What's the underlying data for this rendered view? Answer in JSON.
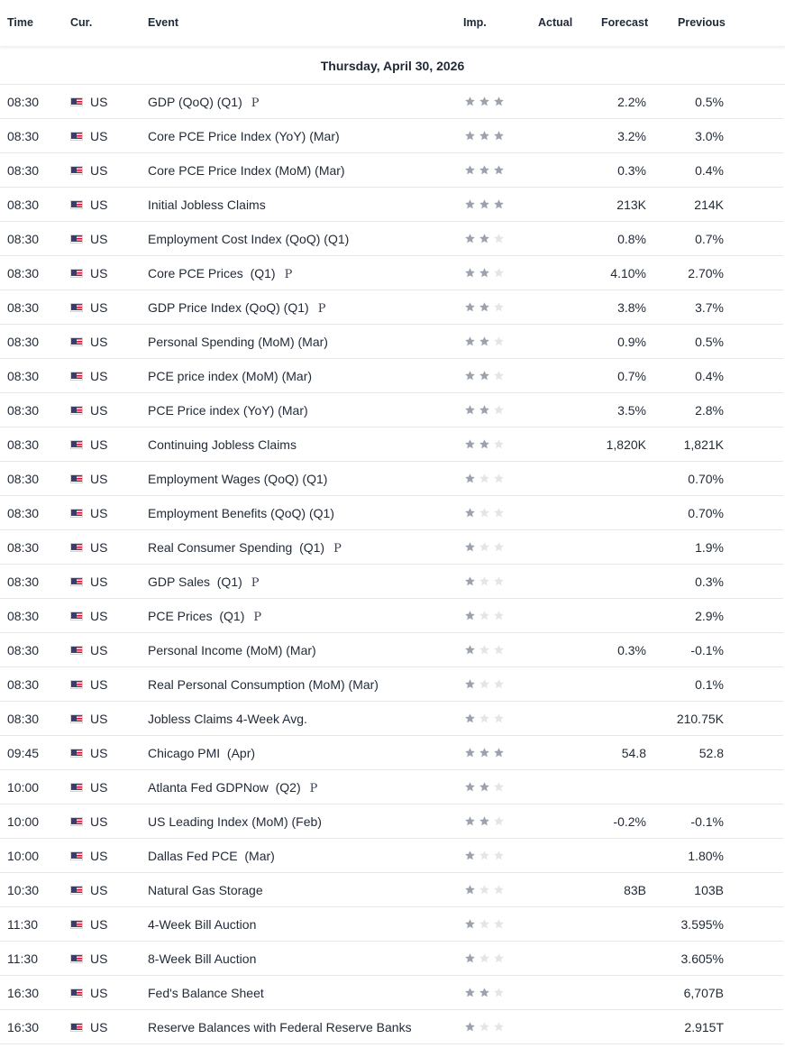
{
  "columns": {
    "time": "Time",
    "cur": "Cur.",
    "event": "Event",
    "imp": "Imp.",
    "actual": "Actual",
    "forecast": "Forecast",
    "previous": "Previous"
  },
  "date_label": "Thursday, April 30, 2026",
  "colors": {
    "star_on": "#9ca3af",
    "star_off": "#e2e5e9",
    "divider": "#e5e7eb"
  },
  "events": [
    {
      "time": "08:30",
      "cur": "US",
      "flag": "us-flag-icon",
      "event": "GDP (QoQ) (Q1)",
      "prelim": "P",
      "imp": 3,
      "actual": "",
      "forecast": "2.2%",
      "previous": "0.5%"
    },
    {
      "time": "08:30",
      "cur": "US",
      "flag": "us-flag-icon",
      "event": "Core PCE Price Index (YoY) (Mar)",
      "prelim": "",
      "imp": 3,
      "actual": "",
      "forecast": "3.2%",
      "previous": "3.0%"
    },
    {
      "time": "08:30",
      "cur": "US",
      "flag": "us-flag-icon",
      "event": "Core PCE Price Index (MoM) (Mar)",
      "prelim": "",
      "imp": 3,
      "actual": "",
      "forecast": "0.3%",
      "previous": "0.4%"
    },
    {
      "time": "08:30",
      "cur": "US",
      "flag": "us-flag-icon",
      "event": "Initial Jobless Claims",
      "prelim": "",
      "imp": 3,
      "actual": "",
      "forecast": "213K",
      "previous": "214K"
    },
    {
      "time": "08:30",
      "cur": "US",
      "flag": "us-flag-icon",
      "event": "Employment Cost Index (QoQ) (Q1)",
      "prelim": "",
      "imp": 2,
      "actual": "",
      "forecast": "0.8%",
      "previous": "0.7%"
    },
    {
      "time": "08:30",
      "cur": "US",
      "flag": "us-flag-icon",
      "event": "Core PCE Prices  (Q1)",
      "prelim": "P",
      "imp": 2,
      "actual": "",
      "forecast": "4.10%",
      "previous": "2.70%"
    },
    {
      "time": "08:30",
      "cur": "US",
      "flag": "us-flag-icon",
      "event": "GDP Price Index (QoQ) (Q1)",
      "prelim": "P",
      "imp": 2,
      "actual": "",
      "forecast": "3.8%",
      "previous": "3.7%"
    },
    {
      "time": "08:30",
      "cur": "US",
      "flag": "us-flag-icon",
      "event": "Personal Spending (MoM) (Mar)",
      "prelim": "",
      "imp": 2,
      "actual": "",
      "forecast": "0.9%",
      "previous": "0.5%"
    },
    {
      "time": "08:30",
      "cur": "US",
      "flag": "us-flag-icon",
      "event": "PCE price index (MoM) (Mar)",
      "prelim": "",
      "imp": 2,
      "actual": "",
      "forecast": "0.7%",
      "previous": "0.4%"
    },
    {
      "time": "08:30",
      "cur": "US",
      "flag": "us-flag-icon",
      "event": "PCE Price index (YoY) (Mar)",
      "prelim": "",
      "imp": 2,
      "actual": "",
      "forecast": "3.5%",
      "previous": "2.8%"
    },
    {
      "time": "08:30",
      "cur": "US",
      "flag": "us-flag-icon",
      "event": "Continuing Jobless Claims",
      "prelim": "",
      "imp": 2,
      "actual": "",
      "forecast": "1,820K",
      "previous": "1,821K"
    },
    {
      "time": "08:30",
      "cur": "US",
      "flag": "us-flag-icon",
      "event": "Employment Wages (QoQ) (Q1)",
      "prelim": "",
      "imp": 1,
      "actual": "",
      "forecast": "",
      "previous": "0.70%"
    },
    {
      "time": "08:30",
      "cur": "US",
      "flag": "us-flag-icon",
      "event": "Employment Benefits (QoQ) (Q1)",
      "prelim": "",
      "imp": 1,
      "actual": "",
      "forecast": "",
      "previous": "0.70%"
    },
    {
      "time": "08:30",
      "cur": "US",
      "flag": "us-flag-icon",
      "event": "Real Consumer Spending  (Q1)",
      "prelim": "P",
      "imp": 1,
      "actual": "",
      "forecast": "",
      "previous": "1.9%"
    },
    {
      "time": "08:30",
      "cur": "US",
      "flag": "us-flag-icon",
      "event": "GDP Sales  (Q1)",
      "prelim": "P",
      "imp": 1,
      "actual": "",
      "forecast": "",
      "previous": "0.3%"
    },
    {
      "time": "08:30",
      "cur": "US",
      "flag": "us-flag-icon",
      "event": "PCE Prices  (Q1)",
      "prelim": "P",
      "imp": 1,
      "actual": "",
      "forecast": "",
      "previous": "2.9%"
    },
    {
      "time": "08:30",
      "cur": "US",
      "flag": "us-flag-icon",
      "event": "Personal Income (MoM) (Mar)",
      "prelim": "",
      "imp": 1,
      "actual": "",
      "forecast": "0.3%",
      "previous": "-0.1%"
    },
    {
      "time": "08:30",
      "cur": "US",
      "flag": "us-flag-icon",
      "event": "Real Personal Consumption (MoM) (Mar)",
      "prelim": "",
      "imp": 1,
      "actual": "",
      "forecast": "",
      "previous": "0.1%"
    },
    {
      "time": "08:30",
      "cur": "US",
      "flag": "us-flag-icon",
      "event": "Jobless Claims 4-Week Avg.",
      "prelim": "",
      "imp": 1,
      "actual": "",
      "forecast": "",
      "previous": "210.75K"
    },
    {
      "time": "09:45",
      "cur": "US",
      "flag": "us-flag-icon",
      "event": "Chicago PMI  (Apr)",
      "prelim": "",
      "imp": 3,
      "actual": "",
      "forecast": "54.8",
      "previous": "52.8"
    },
    {
      "time": "10:00",
      "cur": "US",
      "flag": "us-flag-icon",
      "event": "Atlanta Fed GDPNow  (Q2)",
      "prelim": "P",
      "imp": 2,
      "actual": "",
      "forecast": "",
      "previous": ""
    },
    {
      "time": "10:00",
      "cur": "US",
      "flag": "us-flag-icon",
      "event": "US Leading Index (MoM) (Feb)",
      "prelim": "",
      "imp": 2,
      "actual": "",
      "forecast": "-0.2%",
      "previous": "-0.1%"
    },
    {
      "time": "10:00",
      "cur": "US",
      "flag": "us-flag-icon",
      "event": "Dallas Fed PCE  (Mar)",
      "prelim": "",
      "imp": 1,
      "actual": "",
      "forecast": "",
      "previous": "1.80%"
    },
    {
      "time": "10:30",
      "cur": "US",
      "flag": "us-flag-icon",
      "event": "Natural Gas Storage",
      "prelim": "",
      "imp": 1,
      "actual": "",
      "forecast": "83B",
      "previous": "103B"
    },
    {
      "time": "11:30",
      "cur": "US",
      "flag": "us-flag-icon",
      "event": "4-Week Bill Auction",
      "prelim": "",
      "imp": 1,
      "actual": "",
      "forecast": "",
      "previous": "3.595%"
    },
    {
      "time": "11:30",
      "cur": "US",
      "flag": "us-flag-icon",
      "event": "8-Week Bill Auction",
      "prelim": "",
      "imp": 1,
      "actual": "",
      "forecast": "",
      "previous": "3.605%"
    },
    {
      "time": "16:30",
      "cur": "US",
      "flag": "us-flag-icon",
      "event": "Fed's Balance Sheet",
      "prelim": "",
      "imp": 2,
      "actual": "",
      "forecast": "",
      "previous": "6,707B"
    },
    {
      "time": "16:30",
      "cur": "US",
      "flag": "us-flag-icon",
      "event": "Reserve Balances with Federal Reserve Banks",
      "prelim": "",
      "imp": 1,
      "actual": "",
      "forecast": "",
      "previous": "2.915T"
    }
  ]
}
